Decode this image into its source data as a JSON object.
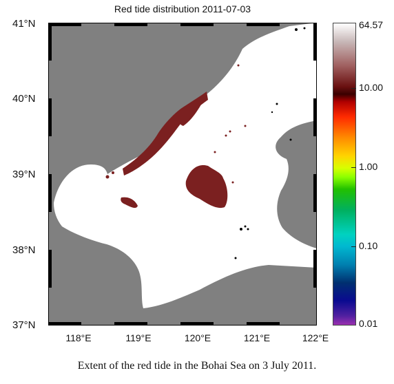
{
  "map": {
    "title": "Red tide distribution 2011-07-03",
    "lat_labels": [
      "41°N",
      "40°N",
      "39°N",
      "38°N",
      "37°N"
    ],
    "lon_labels": [
      "118°E",
      "119°E",
      "120°E",
      "121°E",
      "122°E"
    ],
    "extent": {
      "lon": [
        117.5,
        122.0
      ],
      "lat": [
        37.0,
        41.0
      ]
    },
    "colors": {
      "land": "#808080",
      "sea": "#ffffff",
      "red_tide": "#7b2020"
    }
  },
  "colorbar": {
    "scale": "log",
    "labels": [
      "64.57",
      "10.00",
      "1.00",
      "0.10",
      "0.01"
    ]
  },
  "caption": "Extent of the red tide in the Bohai Sea on 3 July 2011."
}
